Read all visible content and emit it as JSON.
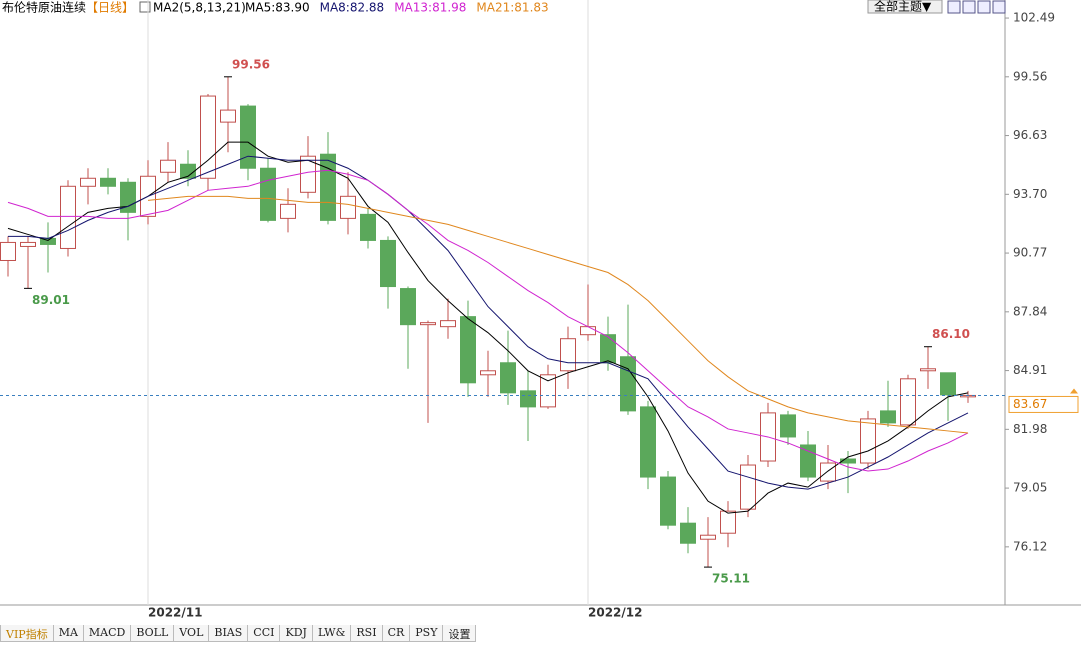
{
  "header": {
    "title": "布伦特原油连续",
    "period": "【日线】",
    "indicator": "MA2(5,8,13,21)",
    "theme_button": "全部主题▼"
  },
  "toolbar": [
    "VIP指标",
    "MA",
    "MACD",
    "BOLL",
    "VOL",
    "BIAS",
    "CCI",
    "KDJ",
    "LW&",
    "RSI",
    "CR",
    "PSY",
    "设置"
  ],
  "chart_data": {
    "type": "candlestick",
    "categories": [
      null,
      null,
      null,
      null,
      null,
      null,
      null,
      "2022/11",
      null,
      null,
      null,
      null,
      null,
      null,
      null,
      null,
      null,
      null,
      null,
      null,
      null,
      null,
      null,
      null,
      null,
      null,
      null,
      null,
      null,
      "2022/12",
      null,
      null,
      null,
      null,
      null,
      null,
      null,
      null,
      null,
      null,
      null,
      null,
      null,
      null,
      null,
      null,
      null,
      null,
      null
    ],
    "open": [
      90.4,
      91.1,
      91.5,
      91.0,
      94.1,
      94.5,
      94.3,
      92.6,
      94.8,
      95.2,
      94.5,
      97.3,
      98.1,
      95.0,
      92.5,
      93.8,
      95.7,
      92.5,
      92.7,
      91.4,
      89.0,
      87.2,
      87.1,
      87.6,
      84.7,
      85.3,
      83.9,
      83.1,
      84.9,
      86.7,
      86.7,
      85.6,
      83.1,
      79.6,
      77.3,
      76.5,
      76.8,
      78.0,
      80.4,
      82.7,
      81.2,
      79.4,
      80.5,
      80.3,
      82.9,
      82.2,
      84.9,
      84.8,
      83.6
    ],
    "high": [
      91.6,
      91.6,
      92.3,
      94.4,
      95.0,
      95.0,
      94.5,
      95.4,
      96.3,
      95.9,
      98.7,
      99.56,
      98.2,
      95.5,
      94.0,
      96.6,
      96.8,
      94.8,
      93.0,
      91.6,
      89.1,
      87.4,
      88.5,
      88.4,
      85.9,
      86.9,
      84.9,
      85.2,
      87.1,
      89.2,
      87.6,
      88.2,
      83.4,
      79.9,
      78.1,
      77.6,
      78.4,
      80.7,
      83.3,
      82.9,
      81.9,
      81.2,
      80.9,
      82.9,
      84.4,
      84.7,
      86.1,
      84.8,
      83.9
    ],
    "low": [
      89.6,
      89.01,
      89.8,
      90.6,
      93.2,
      93.7,
      91.4,
      92.2,
      94.3,
      94.1,
      93.9,
      95.8,
      94.4,
      92.3,
      91.8,
      93.5,
      92.2,
      91.7,
      91.0,
      88.0,
      85.0,
      82.3,
      86.5,
      83.6,
      83.6,
      83.2,
      81.4,
      83.0,
      84.0,
      86.4,
      84.9,
      82.7,
      79.0,
      77.0,
      75.8,
      75.11,
      76.1,
      77.6,
      80.1,
      81.2,
      79.4,
      79.0,
      78.8,
      80.0,
      82.1,
      82.0,
      84.0,
      82.4,
      83.3
    ],
    "close": [
      91.3,
      91.3,
      91.2,
      94.1,
      94.5,
      94.1,
      92.8,
      94.6,
      95.4,
      94.5,
      98.6,
      97.9,
      95.0,
      92.4,
      93.2,
      95.6,
      92.4,
      93.6,
      91.4,
      89.1,
      87.2,
      87.3,
      87.4,
      84.3,
      84.9,
      83.8,
      83.1,
      84.7,
      86.5,
      87.1,
      85.3,
      82.9,
      79.6,
      77.2,
      76.3,
      76.7,
      77.9,
      80.2,
      82.8,
      81.6,
      79.6,
      80.3,
      80.3,
      82.5,
      82.3,
      84.5,
      85.0,
      83.7,
      83.67
    ],
    "up_color": "#c0504d",
    "down_color": "#5ba85b",
    "series": [
      {
        "name": "MA5:83.90",
        "color": "#000000",
        "values": [
          92.0,
          91.7,
          91.4,
          92.1,
          92.8,
          93.0,
          93.1,
          93.6,
          94.3,
          94.6,
          95.4,
          96.3,
          96.3,
          95.6,
          95.3,
          95.4,
          95.0,
          94.5,
          93.1,
          92.3,
          90.8,
          89.4,
          88.4,
          87.5,
          86.8,
          85.9,
          84.9,
          84.4,
          84.8,
          85.1,
          85.4,
          85.0,
          83.6,
          81.9,
          79.8,
          78.4,
          77.8,
          77.9,
          78.8,
          79.3,
          79.1,
          79.9,
          80.6,
          80.9,
          81.4,
          82.1,
          82.9,
          83.6,
          83.8
        ]
      },
      {
        "name": "MA8:82.88",
        "color": "#14146e",
        "values": [
          91.6,
          91.6,
          91.5,
          91.9,
          92.4,
          92.8,
          93.1,
          93.6,
          94.0,
          94.4,
          94.8,
          95.2,
          95.6,
          95.5,
          95.4,
          95.4,
          95.4,
          95.0,
          94.4,
          93.7,
          92.9,
          91.9,
          90.9,
          89.5,
          88.1,
          87.1,
          86.1,
          85.5,
          85.3,
          85.3,
          85.3,
          84.9,
          84.5,
          83.3,
          82.1,
          81.0,
          79.9,
          79.6,
          79.3,
          79.1,
          79.0,
          79.3,
          79.6,
          80.1,
          80.6,
          81.2,
          81.8,
          82.3,
          82.8
        ]
      },
      {
        "name": "MA13:81.98",
        "color": "#d024d0",
        "values": [
          93.3,
          93.0,
          92.6,
          92.6,
          92.6,
          92.5,
          92.5,
          92.7,
          92.9,
          93.4,
          93.9,
          94.0,
          94.1,
          94.4,
          94.6,
          94.8,
          94.9,
          94.7,
          94.4,
          93.7,
          92.9,
          92.2,
          91.4,
          90.9,
          90.3,
          89.6,
          88.9,
          88.3,
          87.6,
          87.1,
          86.6,
          85.8,
          84.9,
          84.0,
          83.1,
          82.6,
          82.0,
          81.8,
          81.6,
          81.3,
          80.9,
          80.5,
          80.1,
          79.9,
          80.0,
          80.4,
          80.9,
          81.3,
          81.8
        ]
      },
      {
        "name": "MA21:81.83",
        "color": "#e0871e",
        "values": [
          null,
          null,
          null,
          null,
          null,
          null,
          null,
          93.4,
          93.5,
          93.6,
          93.6,
          93.6,
          93.5,
          93.5,
          93.4,
          93.3,
          93.3,
          93.2,
          93.0,
          92.8,
          92.6,
          92.4,
          92.2,
          91.9,
          91.6,
          91.3,
          91.0,
          90.7,
          90.4,
          90.1,
          89.8,
          89.2,
          88.4,
          87.4,
          86.4,
          85.4,
          84.6,
          83.9,
          83.5,
          83.1,
          82.8,
          82.6,
          82.4,
          82.3,
          82.2,
          82.1,
          82.0,
          81.9,
          81.8
        ]
      }
    ],
    "marked_prices": [
      99.56,
      89.01,
      75.11,
      {
        "value": 86.1,
        "label": "86.10"
      }
    ],
    "last_price": 83.67,
    "ylim": [
      73.22,
      103.39
    ],
    "yticks": [
      102.49,
      99.56,
      96.63,
      {
        "value": 93.7,
        "label": "93.70"
      },
      90.77,
      87.84,
      84.91,
      81.98,
      79.05,
      76.12
    ],
    "grid": false
  }
}
